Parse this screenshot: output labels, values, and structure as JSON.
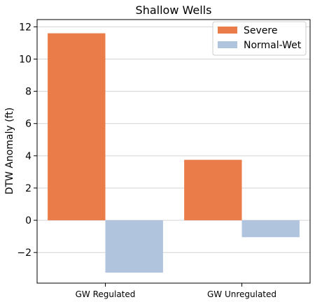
{
  "chart_data": {
    "type": "bar",
    "title": "Shallow Wells",
    "xlabel": "",
    "ylabel": "DTW Anomaly (ft)",
    "categories": [
      "GW Regulated",
      "GW Unregulated"
    ],
    "series": [
      {
        "name": "Severe",
        "values": [
          11.6,
          3.75
        ],
        "color": "#e97c48"
      },
      {
        "name": "Normal-Wet",
        "values": [
          -3.25,
          -1.05
        ],
        "color": "#b0c4de"
      }
    ],
    "ylim": [
      -3.9,
      12.45
    ],
    "yticks": [
      -2,
      0,
      2,
      4,
      6,
      8,
      10,
      12
    ],
    "ytick_labels": [
      "−2",
      "0",
      "2",
      "4",
      "6",
      "8",
      "10",
      "12"
    ],
    "grid": "horizontal",
    "legend_position": "top-right"
  }
}
